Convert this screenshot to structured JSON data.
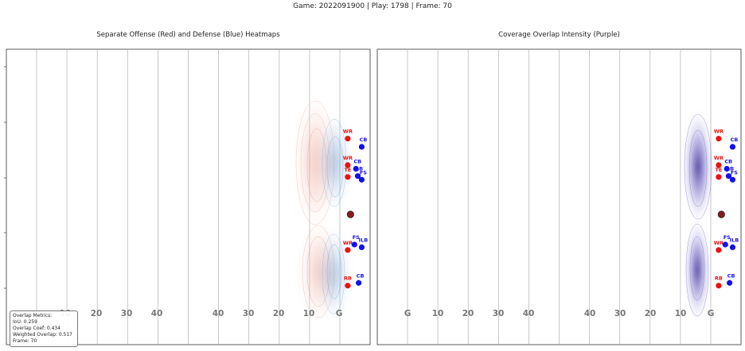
{
  "suptitle": "Game: 2022091900 | Play: 1798 | Frame: 70",
  "colors": {
    "offense": "#ee1111",
    "defense": "#1111ee",
    "overlap": "#4b2a9e",
    "ball": "#8b1a1a",
    "gridline": "#b0b0b0",
    "yard_label": "#777777"
  },
  "chart_data": [
    {
      "type": "scatter",
      "title": "Separate Offense (Red) and Defense (Blue) Heatmaps",
      "heatmaps": [
        "offense-red",
        "defense-blue"
      ],
      "x_tick_labels": [
        "10",
        "20",
        "30",
        "40",
        "40",
        "30",
        "20",
        "10",
        "G"
      ],
      "grid": true,
      "players": [
        {
          "label": "WR",
          "team": "offense",
          "x": 112.6,
          "y": 8.3
        },
        {
          "label": "WR",
          "team": "offense",
          "x": 112.6,
          "y": 5.4
        },
        {
          "label": "TE",
          "team": "offense",
          "x": 112.6,
          "y": 4.1
        },
        {
          "label": "WR",
          "team": "offense",
          "x": 112.6,
          "y": -3.9
        },
        {
          "label": "RB",
          "team": "offense",
          "x": 112.6,
          "y": -7.8
        },
        {
          "label": "CB",
          "team": "defense",
          "x": 117.2,
          "y": 7.4
        },
        {
          "label": "CB",
          "team": "defense",
          "x": 115.3,
          "y": 5.0
        },
        {
          "label": "LB",
          "team": "defense",
          "x": 115.9,
          "y": 4.2
        },
        {
          "label": "FS",
          "team": "defense",
          "x": 117.2,
          "y": 3.8
        },
        {
          "label": "FS",
          "team": "defense",
          "x": 114.8,
          "y": -3.3
        },
        {
          "label": "ILB",
          "team": "defense",
          "x": 117.2,
          "y": -3.6
        },
        {
          "label": "CB",
          "team": "defense",
          "x": 116.2,
          "y": -7.5
        }
      ],
      "ball": {
        "x": 113.5,
        "y": 0.0
      },
      "metrics": {
        "heading": "Overlap Metrics:",
        "iou": "IoU: 0.259",
        "overlap_coef": "Overlap Coef: 0.434",
        "weighted_overlap": "Weighted Overlap: 0.517",
        "frame": "Frame: 70"
      }
    },
    {
      "type": "scatter",
      "title": "Coverage Overlap Intensity (Purple)",
      "heatmaps": [
        "overlap-purple"
      ],
      "x_tick_labels": [
        "G",
        "10",
        "20",
        "30",
        "40",
        "40",
        "30",
        "20",
        "10",
        "G"
      ],
      "grid": true,
      "players": [
        {
          "label": "WR",
          "team": "offense",
          "x": 112.6,
          "y": 8.3
        },
        {
          "label": "WR",
          "team": "offense",
          "x": 112.6,
          "y": 5.4
        },
        {
          "label": "TE",
          "team": "offense",
          "x": 112.6,
          "y": 4.1
        },
        {
          "label": "WR",
          "team": "offense",
          "x": 112.6,
          "y": -3.9
        },
        {
          "label": "RB",
          "team": "offense",
          "x": 112.6,
          "y": -7.8
        },
        {
          "label": "CB",
          "team": "defense",
          "x": 117.2,
          "y": 7.4
        },
        {
          "label": "CB",
          "team": "defense",
          "x": 115.3,
          "y": 5.0
        },
        {
          "label": "LB",
          "team": "defense",
          "x": 115.9,
          "y": 4.2
        },
        {
          "label": "FS",
          "team": "defense",
          "x": 117.2,
          "y": 3.8
        },
        {
          "label": "FS",
          "team": "defense",
          "x": 114.8,
          "y": -3.3
        },
        {
          "label": "ILB",
          "team": "defense",
          "x": 117.2,
          "y": -3.6
        },
        {
          "label": "CB",
          "team": "defense",
          "x": 116.2,
          "y": -7.5
        }
      ],
      "ball": {
        "x": 113.5,
        "y": 0.0
      }
    }
  ]
}
